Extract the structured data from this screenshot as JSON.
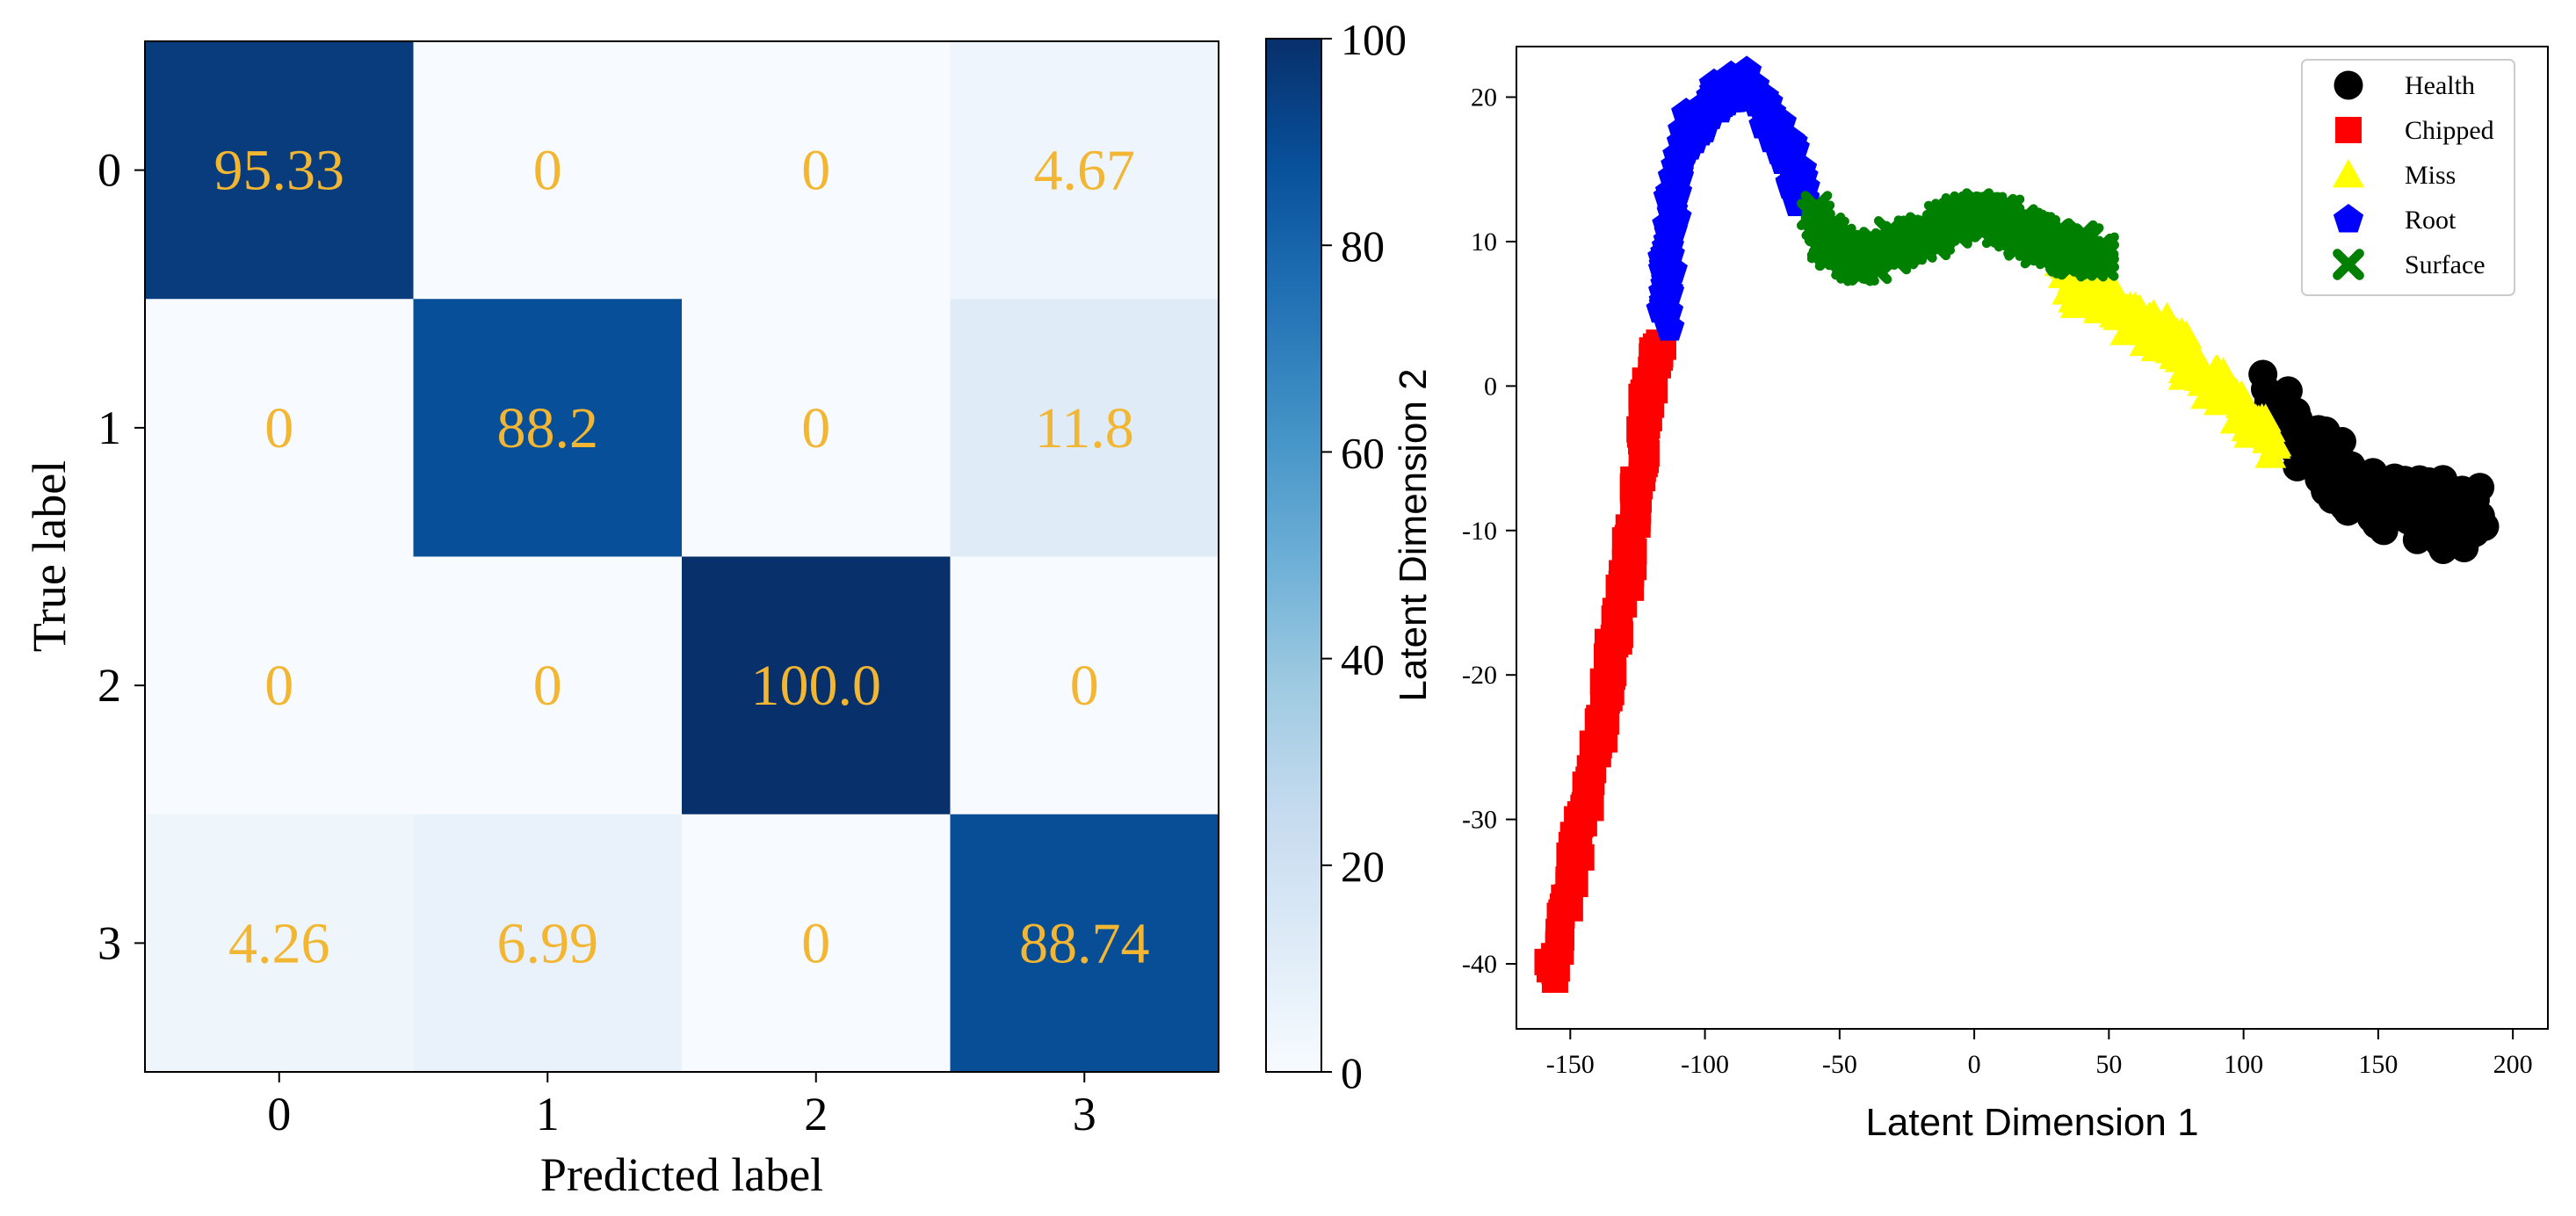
{
  "chart_data": [
    {
      "type": "heatmap",
      "title": "",
      "xlabel": "Predicted label",
      "ylabel": "True label",
      "x_tick_labels": [
        "0",
        "1",
        "2",
        "3"
      ],
      "y_tick_labels": [
        "0",
        "1",
        "2",
        "3"
      ],
      "values": [
        [
          95.33,
          0,
          0,
          4.67
        ],
        [
          0,
          88.2,
          0,
          11.8
        ],
        [
          0,
          0,
          100.0,
          0
        ],
        [
          4.26,
          6.99,
          0,
          88.74
        ]
      ],
      "cell_labels": [
        [
          "95.33",
          "0",
          "0",
          "4.67"
        ],
        [
          "0",
          "88.2",
          "0",
          "11.8"
        ],
        [
          "0",
          "0",
          "100.0",
          "0"
        ],
        [
          "4.26",
          "6.99",
          "0",
          "88.74"
        ]
      ],
      "colormap": "Blues",
      "annotation_color": "#f2b632",
      "colorbar": {
        "range": [
          0,
          100
        ],
        "ticks": [
          0,
          20,
          40,
          60,
          80,
          100
        ],
        "tick_labels": [
          "0",
          "20",
          "40",
          "60",
          "80",
          "100"
        ]
      }
    },
    {
      "type": "scatter",
      "title": "",
      "xlabel": "Latent Dimension 1",
      "ylabel": "Latent Dimension 2",
      "xlim": [
        -170,
        213
      ],
      "ylim": [
        -44.5,
        23.5
      ],
      "x_ticks": [
        -150,
        -100,
        -50,
        0,
        50,
        100,
        150,
        200
      ],
      "x_tick_labels": [
        "-150",
        "-100",
        "-50",
        "0",
        "50",
        "100",
        "150",
        "200"
      ],
      "y_ticks": [
        -40,
        -30,
        -20,
        -10,
        0,
        10,
        20
      ],
      "y_tick_labels": [
        "-40",
        "-30",
        "-20",
        "-10",
        "0",
        "10",
        "20"
      ],
      "legend_position": "top-right",
      "series": [
        {
          "name": "Health",
          "color": "#000000",
          "marker": "circle",
          "path": [
            [
              107,
              -1
            ],
            [
              115,
              -2
            ],
            [
              122,
              -4
            ],
            [
              128,
              -5
            ],
            [
              135,
              -6
            ],
            [
              142,
              -7
            ],
            [
              150,
              -8
            ],
            [
              158,
              -9
            ],
            [
              165,
              -8
            ],
            [
              172,
              -8
            ],
            [
              180,
              -9
            ],
            [
              188,
              -9
            ]
          ],
          "spread": [
            3,
            3.2
          ]
        },
        {
          "name": "Chipped",
          "color": "#ff0000",
          "marker": "square",
          "path": [
            [
              -157,
              -41
            ],
            [
              -154,
              -38
            ],
            [
              -150,
              -34
            ],
            [
              -146,
              -30
            ],
            [
              -142,
              -27
            ],
            [
              -138,
              -23
            ],
            [
              -135,
              -19
            ],
            [
              -132,
              -16
            ],
            [
              -129,
              -13
            ],
            [
              -127,
              -10
            ],
            [
              -125,
              -7
            ],
            [
              -123,
              -4
            ],
            [
              -121,
              -1
            ],
            [
              -119,
              1
            ],
            [
              -117,
              3
            ]
          ],
          "spread": [
            3,
            1.4
          ]
        },
        {
          "name": "Miss",
          "color": "#ffff00",
          "marker": "triangle",
          "path": [
            [
              32,
              8
            ],
            [
              40,
              7
            ],
            [
              48,
              6
            ],
            [
              56,
              5
            ],
            [
              64,
              4
            ],
            [
              72,
              3
            ],
            [
              80,
              1.5
            ],
            [
              88,
              0
            ],
            [
              96,
              -1
            ],
            [
              104,
              -2.5
            ],
            [
              112,
              -4
            ]
          ],
          "spread": [
            3,
            2.2
          ]
        },
        {
          "name": "Root",
          "color": "#0000ff",
          "marker": "pentagon",
          "path": [
            [
              -115,
              5
            ],
            [
              -114,
              8
            ],
            [
              -113,
              11
            ],
            [
              -111,
              14
            ],
            [
              -108,
              16
            ],
            [
              -104,
              18
            ],
            [
              -99,
              19.5
            ],
            [
              -93,
              20
            ],
            [
              -87,
              20.5
            ],
            [
              -81,
              20
            ],
            [
              -76,
              19
            ],
            [
              -71,
              17
            ],
            [
              -67,
              15
            ],
            [
              -63,
              13
            ]
          ],
          "spread": [
            3.2,
            1.8
          ]
        },
        {
          "name": "Surface",
          "color": "#008000",
          "marker": "x",
          "path": [
            [
              -60,
              12
            ],
            [
              -54,
              10
            ],
            [
              -48,
              9
            ],
            [
              -42,
              9
            ],
            [
              -36,
              9.5
            ],
            [
              -28,
              10
            ],
            [
              -22,
              10
            ],
            [
              -16,
              10.5
            ],
            [
              -10,
              11
            ],
            [
              -4,
              12
            ],
            [
              2,
              12
            ],
            [
              8,
              11.5
            ],
            [
              14,
              11
            ],
            [
              20,
              10.5
            ],
            [
              26,
              10
            ],
            [
              34,
              9.5
            ],
            [
              42,
              9
            ],
            [
              48,
              9
            ]
          ],
          "spread": [
            2.5,
            1.6
          ]
        }
      ]
    }
  ]
}
